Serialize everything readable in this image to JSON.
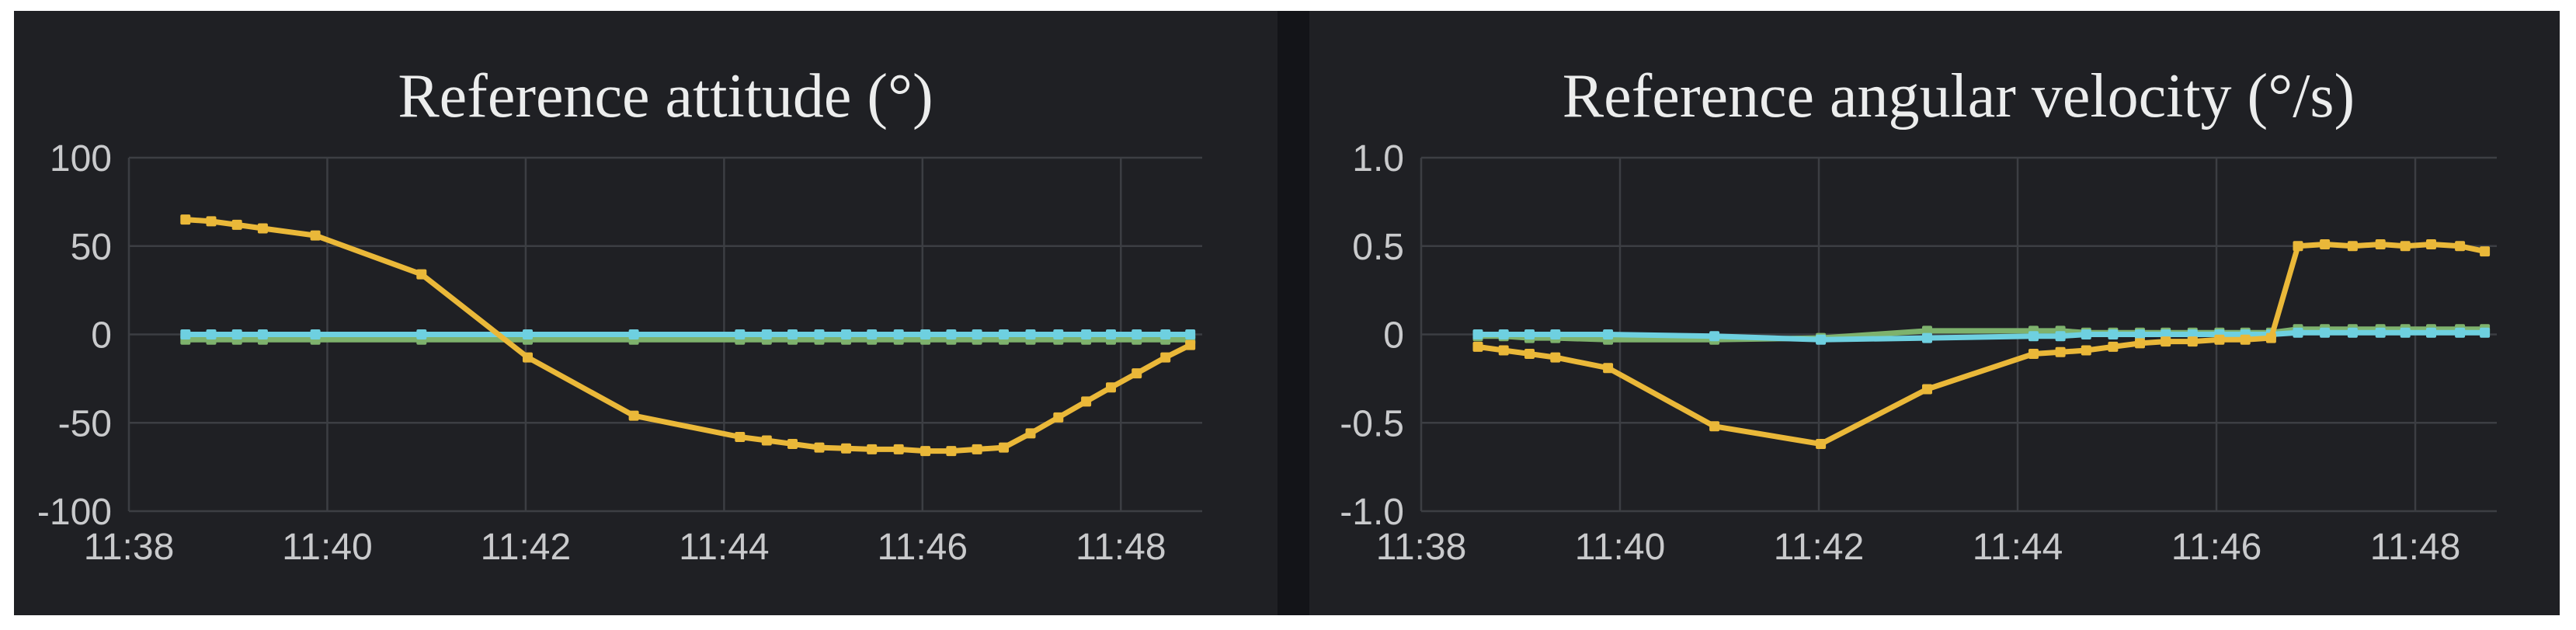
{
  "page": {
    "background": "#ffffff",
    "dashboard_background": "#131418",
    "panel_background": "#1f2024"
  },
  "colors": {
    "grid": "#3c3e43",
    "axis": "#3c3e43",
    "tick_text": "#c9cacc",
    "title_text": "#eceded",
    "series_yellow": "#EAB839",
    "series_green": "#7EB26D",
    "series_cyan": "#6ED0E0"
  },
  "chart_data": [
    {
      "type": "line",
      "title": "Reference attitude (°)",
      "legend": "none",
      "grid": true,
      "x_axis": {
        "start_time": "11:38",
        "tick_labels": [
          "11:38",
          "11:40",
          "11:42",
          "11:44",
          "11:46",
          "11:48"
        ],
        "tick_minutes": [
          0,
          2,
          4,
          6,
          8,
          10
        ],
        "range_minutes": [
          0,
          10.82
        ]
      },
      "y_axis": {
        "tick_labels": [
          "100",
          "50",
          "0",
          "-50",
          "-100"
        ],
        "tick_values": [
          100,
          50,
          0,
          -50,
          -100
        ],
        "range": [
          -100,
          100
        ]
      },
      "x_minutes": [
        0.57,
        0.83,
        1.09,
        1.35,
        1.88,
        2.95,
        4.02,
        5.09,
        6.16,
        6.43,
        6.69,
        6.96,
        7.23,
        7.49,
        7.76,
        8.03,
        8.29,
        8.55,
        8.82,
        9.09,
        9.37,
        9.65,
        9.9,
        10.16,
        10.45,
        10.7
      ],
      "series": [
        {
          "name": "green",
          "color": "#7EB26D",
          "values": [
            -3,
            -3,
            -3,
            -3,
            -3,
            -3,
            -3,
            -3,
            -3,
            -3,
            -3,
            -3,
            -3,
            -3,
            -3,
            -3,
            -3,
            -3,
            -3,
            -3,
            -3,
            -3,
            -3,
            -3,
            -3,
            -3
          ]
        },
        {
          "name": "cyan",
          "color": "#6ED0E0",
          "values": [
            0,
            0,
            0,
            0,
            0,
            0,
            0,
            0,
            0,
            0,
            0,
            0,
            0,
            0,
            0,
            0,
            0,
            0,
            0,
            0,
            0,
            0,
            0,
            0,
            0,
            0
          ]
        },
        {
          "name": "yellow",
          "color": "#EAB839",
          "values": [
            65,
            64,
            62,
            60,
            56,
            34,
            -13,
            -46,
            -58,
            -60,
            -62,
            -64,
            -64.5,
            -65,
            -65,
            -66,
            -66,
            -65,
            -64,
            -56,
            -47,
            -38,
            -30,
            -22,
            -13,
            -6
          ]
        }
      ]
    },
    {
      "type": "line",
      "title": "Reference angular velocity (°/s)",
      "legend": "none",
      "grid": true,
      "x_axis": {
        "start_time": "11:38",
        "tick_labels": [
          "11:38",
          "11:40",
          "11:42",
          "11:44",
          "11:46",
          "11:48"
        ],
        "tick_minutes": [
          0,
          2,
          4,
          6,
          8,
          10
        ],
        "range_minutes": [
          0,
          10.82
        ]
      },
      "y_axis": {
        "tick_labels": [
          "1.0",
          "0.5",
          "0",
          "-0.5",
          "-1.0"
        ],
        "tick_values": [
          1.0,
          0.5,
          0,
          -0.5,
          -1.0
        ],
        "range": [
          -1.0,
          1.0
        ]
      },
      "x_minutes": [
        0.57,
        0.83,
        1.09,
        1.35,
        1.88,
        2.95,
        4.02,
        5.09,
        6.16,
        6.43,
        6.69,
        6.96,
        7.23,
        7.49,
        7.76,
        8.03,
        8.29,
        8.55,
        8.82,
        9.09,
        9.37,
        9.65,
        9.9,
        10.16,
        10.45,
        10.7
      ],
      "series": [
        {
          "name": "green",
          "color": "#7EB26D",
          "values": [
            -0.01,
            -0.01,
            -0.02,
            -0.02,
            -0.03,
            -0.03,
            -0.02,
            0.02,
            0.02,
            0.02,
            0.01,
            0.01,
            0.01,
            0.01,
            0.01,
            0.01,
            0.01,
            0.01,
            0.03,
            0.03,
            0.03,
            0.03,
            0.03,
            0.03,
            0.03,
            0.03
          ]
        },
        {
          "name": "cyan",
          "color": "#6ED0E0",
          "values": [
            0,
            0,
            0,
            0,
            0,
            -0.01,
            -0.03,
            -0.02,
            -0.01,
            -0.01,
            0,
            0,
            0,
            0,
            0,
            0,
            0,
            0,
            0.01,
            0.01,
            0.01,
            0.01,
            0.01,
            0.01,
            0.01,
            0.01
          ]
        },
        {
          "name": "yellow",
          "color": "#EAB839",
          "values": [
            -0.07,
            -0.09,
            -0.11,
            -0.13,
            -0.19,
            -0.52,
            -0.62,
            -0.31,
            -0.11,
            -0.1,
            -0.09,
            -0.07,
            -0.05,
            -0.04,
            -0.04,
            -0.03,
            -0.03,
            -0.02,
            0.5,
            0.51,
            0.5,
            0.51,
            0.5,
            0.51,
            0.5,
            0.47
          ]
        }
      ]
    }
  ]
}
